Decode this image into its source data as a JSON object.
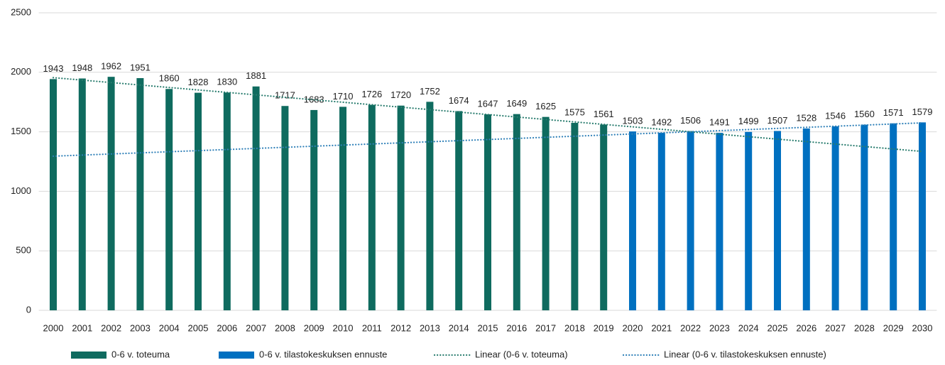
{
  "chart_data": {
    "type": "bar",
    "categories": [
      2000,
      2001,
      2002,
      2003,
      2004,
      2005,
      2006,
      2007,
      2008,
      2009,
      2010,
      2011,
      2012,
      2013,
      2014,
      2015,
      2016,
      2017,
      2018,
      2019,
      2020,
      2021,
      2022,
      2023,
      2024,
      2025,
      2026,
      2027,
      2028,
      2029,
      2030
    ],
    "series": [
      {
        "name": "0-6 v. toteuma",
        "color": "#0f6b5f",
        "values": [
          1943,
          1948,
          1962,
          1951,
          1860,
          1828,
          1830,
          1881,
          1717,
          1683,
          1710,
          1726,
          1720,
          1752,
          1674,
          1647,
          1649,
          1625,
          1575,
          1561,
          null,
          null,
          null,
          null,
          null,
          null,
          null,
          null,
          null,
          null,
          null
        ]
      },
      {
        "name": "0-6 v. tilastokeskuksen ennuste",
        "color": "#0070c0",
        "values": [
          null,
          null,
          null,
          null,
          null,
          null,
          null,
          null,
          null,
          null,
          null,
          null,
          null,
          null,
          null,
          null,
          null,
          null,
          null,
          null,
          1503,
          1492,
          1506,
          1491,
          1499,
          1507,
          1528,
          1546,
          1560,
          1571,
          1579
        ]
      },
      {
        "name": "Linear (0-6 v. toteuma)",
        "color": "#2a7d6f",
        "type": "line",
        "line_style": "dotted",
        "x": [
          2000,
          2030
        ],
        "values": [
          1955,
          1335
        ]
      },
      {
        "name": "Linear (0-6 v. tilastokeskuksen ennuste)",
        "color": "#2f80b8",
        "type": "line",
        "line_style": "dotted",
        "x": [
          2000,
          2030
        ],
        "values": [
          1295,
          1575
        ]
      }
    ],
    "ylim": [
      0,
      2500
    ],
    "yticks": [
      0,
      500,
      1000,
      1500,
      2000,
      2500
    ],
    "grid": true,
    "legend": "bottom"
  }
}
